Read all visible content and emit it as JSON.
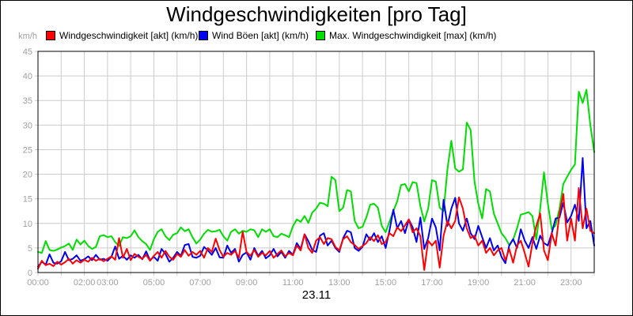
{
  "title": "Windgeschwindigkeiten [pro Tag]",
  "date_label": "23.11",
  "y_unit": "km/h",
  "colors": {
    "actual": "#ff0000",
    "gusts": "#0000ee",
    "max": "#00dd00",
    "grid": "#cccccc",
    "axis": "#000000",
    "tick_text": "#a0a0a0",
    "background": "#ffffff"
  },
  "legend": [
    {
      "label": "Windgeschwindigkeit [akt] (km/h)",
      "color": "#ff0000"
    },
    {
      "label": "Wind Böen [akt] (km/h)",
      "color": "#0000ee"
    },
    {
      "label": "Max. Windgeschwindigkeit [max] (km/h)",
      "color": "#00dd00"
    }
  ],
  "chart_data": {
    "type": "line",
    "title": "Windgeschwindigkeiten [pro Tag]",
    "xlabel": "23.11",
    "ylabel": "km/h",
    "ylim": [
      0,
      45
    ],
    "xlim_hours": [
      0,
      24
    ],
    "grid": true,
    "legend_position": "top",
    "y_ticks": [
      0,
      5,
      10,
      15,
      20,
      25,
      30,
      35,
      40,
      45
    ],
    "x_gridline_every_hours": 1,
    "x_tick_labels": [
      {
        "hour": 0,
        "label": "00:00"
      },
      {
        "hour": 2,
        "label": "02:00"
      },
      {
        "hour": 3,
        "label": "03:00"
      },
      {
        "hour": 5,
        "label": "05:00"
      },
      {
        "hour": 7,
        "label": "07:00"
      },
      {
        "hour": 9,
        "label": "09:00"
      },
      {
        "hour": 11,
        "label": "11:00"
      },
      {
        "hour": 13,
        "label": "13:00"
      },
      {
        "hour": 15,
        "label": "15:00"
      },
      {
        "hour": 17,
        "label": "17:00"
      },
      {
        "hour": 19,
        "label": "19:00"
      },
      {
        "hour": 21,
        "label": "21:00"
      },
      {
        "hour": 23,
        "label": "23:00"
      }
    ],
    "sample_interval_minutes": 10,
    "series": [
      {
        "name": "Windgeschwindigkeit [akt] (km/h)",
        "color": "#ff0000",
        "values": [
          0.8,
          2.4,
          1.5,
          1.8,
          1.3,
          2.2,
          1.6,
          2.1,
          2.8,
          1.8,
          2.5,
          2.0,
          2.6,
          2.2,
          3.0,
          2.4,
          2.8,
          2.3,
          2.8,
          3.3,
          2.6,
          7.0,
          3.0,
          4.8,
          2.5,
          3.8,
          3.2,
          2.8,
          3.6,
          2.4,
          3.4,
          4.2,
          3.0,
          4.4,
          3.2,
          2.6,
          3.8,
          3.2,
          4.6,
          3.4,
          4.2,
          3.6,
          4.4,
          3.0,
          5.0,
          4.2,
          6.9,
          4.6,
          3.2,
          4.0,
          3.6,
          4.4,
          3.0,
          8.3,
          4.2,
          3.4,
          4.6,
          3.2,
          4.0,
          3.5,
          4.4,
          3.0,
          3.8,
          4.5,
          3.3,
          4.0,
          3.5,
          5.5,
          4.5,
          7.8,
          5.0,
          4.0,
          6.5,
          7.2,
          5.8,
          7.0,
          6.8,
          5.2,
          4.5,
          6.8,
          7.4,
          6.2,
          5.6,
          4.8,
          5.4,
          6.0,
          7.2,
          6.4,
          7.6,
          5.8,
          6.2,
          8.0,
          7.4,
          9.2,
          8.4,
          9.6,
          10.8,
          8.2,
          9.0,
          7.4,
          0.5,
          6.5,
          5.5,
          6.5,
          1.0,
          7.5,
          10.5,
          9.0,
          10.5,
          15.3,
          13.0,
          9.0,
          7.0,
          7.5,
          5.5,
          6.5,
          4.0,
          5.0,
          3.5,
          4.5,
          5.0,
          2.5,
          4.8,
          2.0,
          5.5,
          6.5,
          4.0,
          1.2,
          6.0,
          9.5,
          12.0,
          4.5,
          2.5,
          8.0,
          5.5,
          12.0,
          16.0,
          6.5,
          11.0,
          6.5,
          17.2,
          9.0,
          13.0,
          8.5,
          8.0
        ]
      },
      {
        "name": "Wind Böen [akt] (km/h)",
        "color": "#0000ee",
        "values": [
          1.2,
          2.2,
          1.6,
          3.7,
          2.0,
          1.8,
          2.3,
          4.2,
          2.5,
          2.8,
          3.5,
          2.4,
          2.7,
          3.3,
          2.5,
          3.6,
          2.6,
          2.8,
          2.4,
          3.2,
          5.3,
          2.8,
          3.4,
          2.6,
          3.5,
          3.0,
          3.6,
          2.7,
          4.3,
          2.5,
          3.2,
          2.4,
          4.8,
          3.8,
          2.2,
          3.0,
          4.2,
          3.4,
          5.6,
          5.8,
          3.2,
          3.0,
          3.4,
          5.2,
          4.5,
          3.6,
          5.0,
          3.1,
          3.0,
          5.5,
          4.0,
          4.8,
          2.2,
          3.6,
          4.1,
          2.6,
          5.0,
          3.4,
          4.4,
          2.9,
          3.5,
          4.8,
          3.3,
          4.2,
          3.0,
          4.4,
          3.6,
          6.0,
          4.8,
          7.8,
          6.4,
          4.6,
          4.2,
          7.5,
          8.0,
          5.5,
          6.5,
          5.0,
          4.2,
          7.0,
          8.5,
          8.2,
          5.0,
          4.4,
          5.2,
          7.8,
          6.6,
          8.0,
          6.2,
          7.4,
          5.0,
          8.6,
          12.8,
          9.0,
          10.5,
          8.0,
          10.8,
          9.2,
          6.2,
          11.2,
          4.8,
          7.0,
          11.0,
          9.2,
          4.5,
          14.8,
          9.5,
          13.0,
          15.2,
          10.0,
          8.5,
          11.0,
          8.0,
          6.8,
          9.5,
          7.2,
          5.0,
          7.0,
          4.5,
          5.5,
          3.2,
          1.9,
          5.5,
          6.8,
          5.0,
          8.8,
          6.5,
          5.0,
          7.2,
          4.8,
          7.5,
          6.0,
          5.5,
          8.0,
          11.0,
          11.2,
          14.2,
          10.2,
          11.5,
          13.8,
          10.5,
          23.3,
          9.0,
          10.5,
          5.5
        ]
      },
      {
        "name": "Max. Windgeschwindigkeit [max] (km/h)",
        "color": "#00dd00",
        "values": [
          4.2,
          4.0,
          6.4,
          4.6,
          4.4,
          4.7,
          5.1,
          5.4,
          5.9,
          4.6,
          6.7,
          5.7,
          6.5,
          5.4,
          4.8,
          5.2,
          7.4,
          7.6,
          7.2,
          7.4,
          6.2,
          5.4,
          7.2,
          7.0,
          7.4,
          8.6,
          7.2,
          6.4,
          5.8,
          4.6,
          6.8,
          8.3,
          8.8,
          7.4,
          6.6,
          7.7,
          8.0,
          9.2,
          8.4,
          8.8,
          7.2,
          5.9,
          6.7,
          7.9,
          8.7,
          8.3,
          8.4,
          8.7,
          7.4,
          6.5,
          8.3,
          8.8,
          7.9,
          8.5,
          8.3,
          8.8,
          8.6,
          7.2,
          8.8,
          8.3,
          8.8,
          7.4,
          7.2,
          7.9,
          7.6,
          7.2,
          9.4,
          10.8,
          10.3,
          11.5,
          10.1,
          12.2,
          13.0,
          14.2,
          14.0,
          13.5,
          19.5,
          18.8,
          12.5,
          13.2,
          16.8,
          16.5,
          10.5,
          9.0,
          9.3,
          11.2,
          13.8,
          14.0,
          13.2,
          9.5,
          8.2,
          10.4,
          12.5,
          14.5,
          17.8,
          18.0,
          16.5,
          18.4,
          18.2,
          13.5,
          10.4,
          13.0,
          18.8,
          18.5,
          13.2,
          12.5,
          21.0,
          26.8,
          21.2,
          20.5,
          21.0,
          30.5,
          29.0,
          18.5,
          14.0,
          11.0,
          17.0,
          16.5,
          12.0,
          10.0,
          8.0,
          7.0,
          5.6,
          6.7,
          9.0,
          11.8,
          12.0,
          12.3,
          11.5,
          6.7,
          13.0,
          20.4,
          14.0,
          8.8,
          9.6,
          13.0,
          18.0,
          19.5,
          20.9,
          22.0,
          36.8,
          34.5,
          37.2,
          30.0,
          24.5
        ]
      }
    ]
  }
}
